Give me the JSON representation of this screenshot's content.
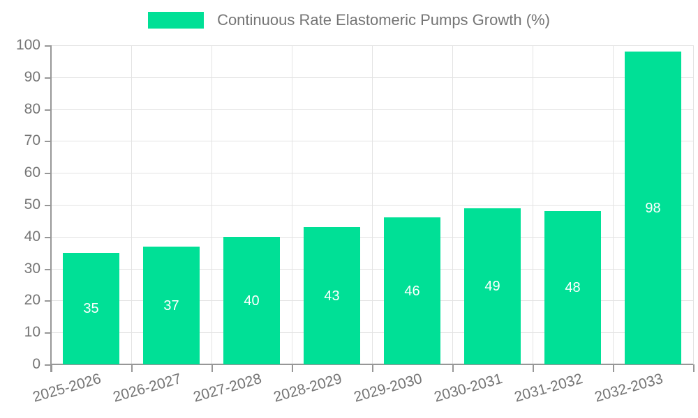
{
  "chart_data": {
    "type": "bar",
    "title": "",
    "legend": {
      "label": "Continuous Rate Elastomeric Pumps Growth (%)",
      "position": "top"
    },
    "categories": [
      "2025-2026",
      "2026-2027",
      "2027-2028",
      "2028-2029",
      "2029-2030",
      "2030-2031",
      "2031-2032",
      "2032-2033"
    ],
    "values": [
      35,
      37,
      40,
      43,
      46,
      49,
      48,
      98
    ],
    "value_labels": [
      "35",
      "37",
      "40",
      "43",
      "46",
      "49",
      "48",
      "98"
    ],
    "xlabel": "",
    "ylabel": "",
    "ylim": [
      0,
      100
    ],
    "yticks": [
      0,
      10,
      20,
      30,
      40,
      50,
      60,
      70,
      80,
      90,
      100
    ],
    "grid": true,
    "legend_position": "top",
    "xtick_rotation_deg": -16,
    "colors": {
      "bar": "#00e096",
      "value_label": "#ffffff",
      "axis": "#979797",
      "grid": "#e3e3e3",
      "tick_label": "#757575",
      "background": "#ffffff"
    }
  }
}
